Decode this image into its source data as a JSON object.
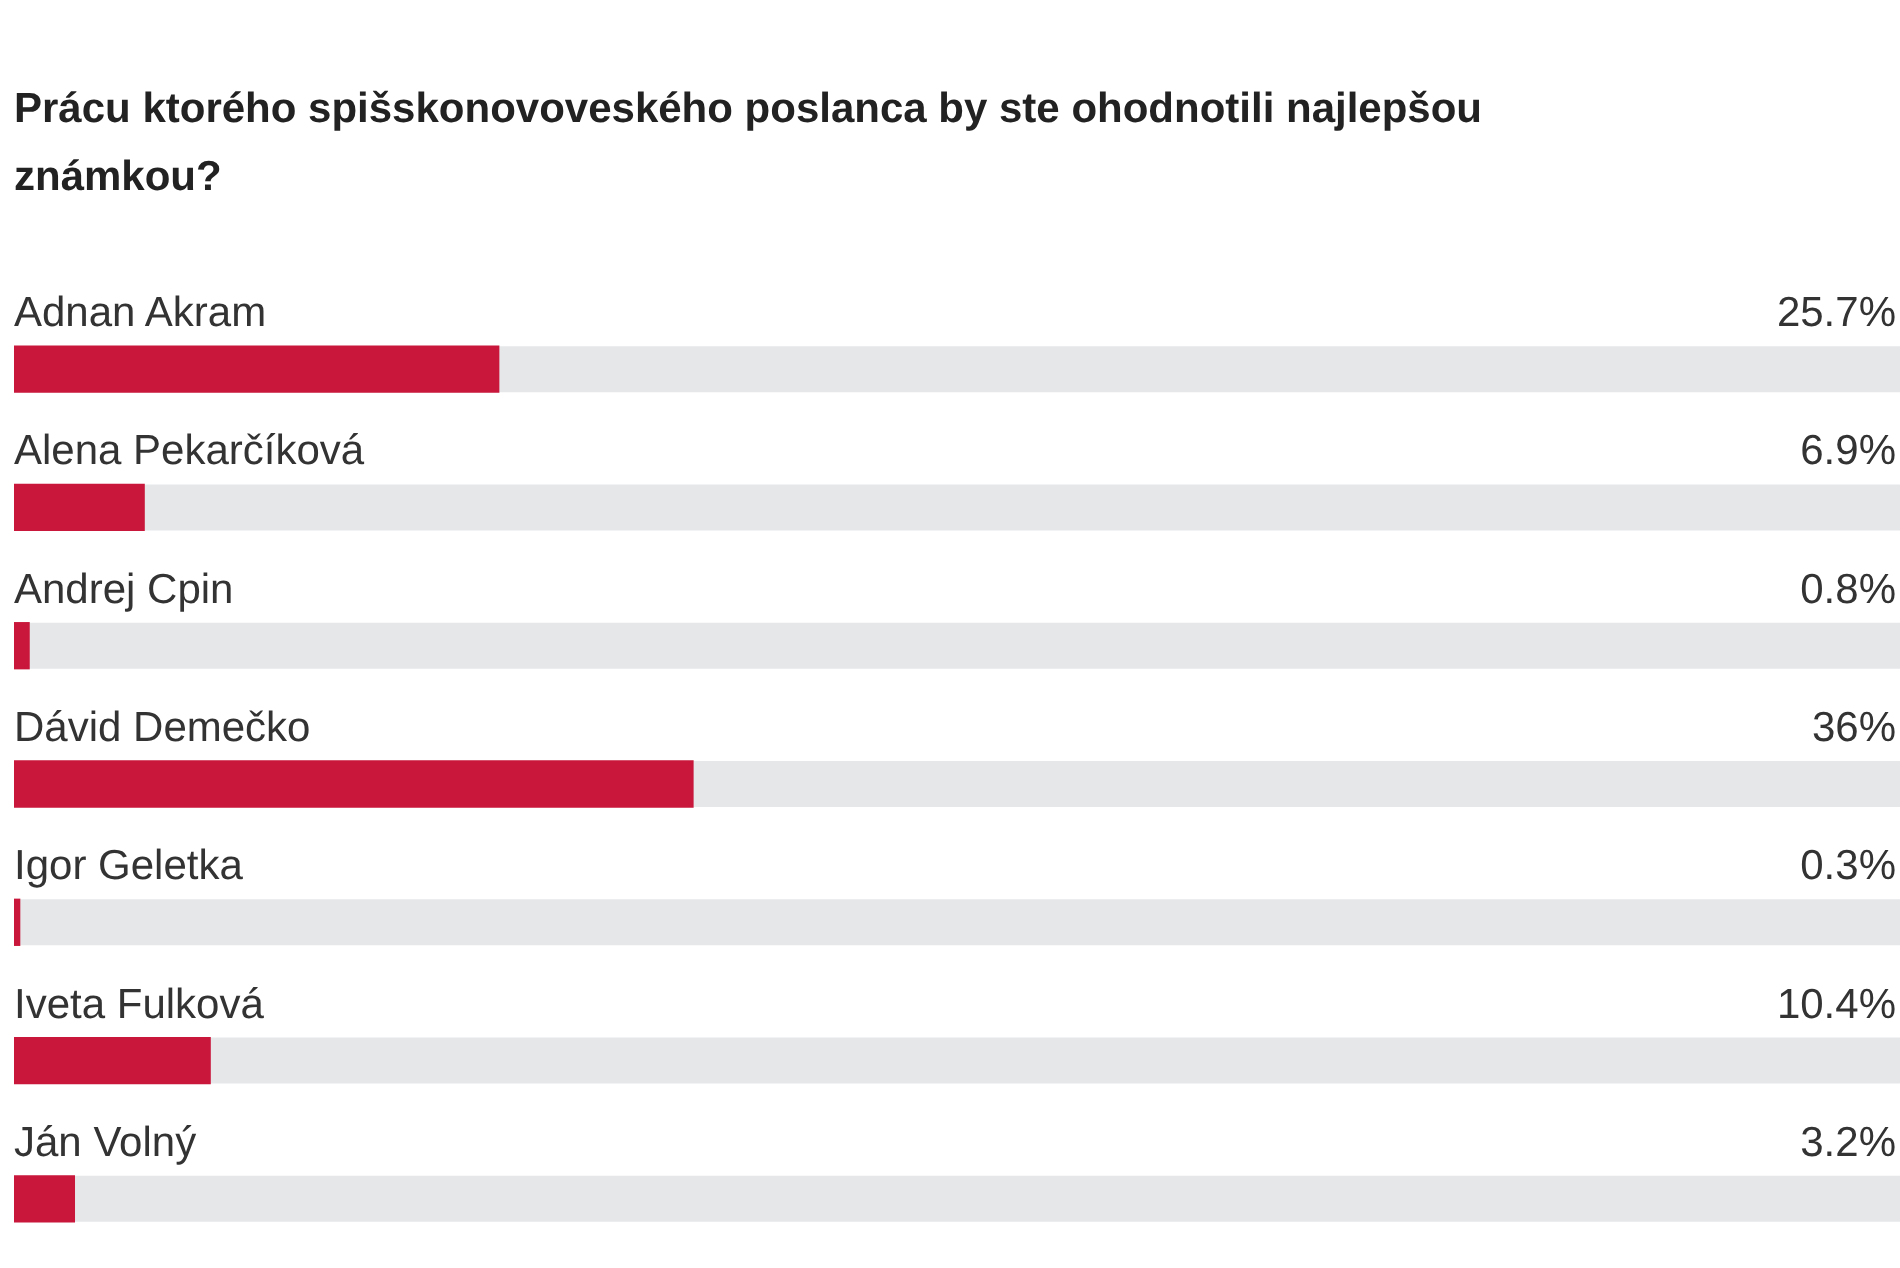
{
  "chart_data": {
    "type": "bar",
    "orientation": "horizontal",
    "title": "Prácu ktorého spišskonovoveského poslanca by ste ohodnotili najlepšou známkou?",
    "categories": [
      "Adnan Akram",
      "Alena Pekarčíková",
      "Andrej Cpin",
      "Dávid Demečko",
      "Igor Geletka",
      "Iveta Fulková",
      "Ján Volný"
    ],
    "values": [
      25.7,
      6.9,
      0.8,
      36,
      0.3,
      10.4,
      3.2
    ],
    "value_labels": [
      "25.7%",
      "6.9%",
      "0.8%",
      "36%",
      "0.3%",
      "10.4%",
      "3.2%"
    ],
    "color": "#c8173a",
    "xlim": [
      0,
      100
    ],
    "tick_labels": "y",
    "legend": false
  }
}
